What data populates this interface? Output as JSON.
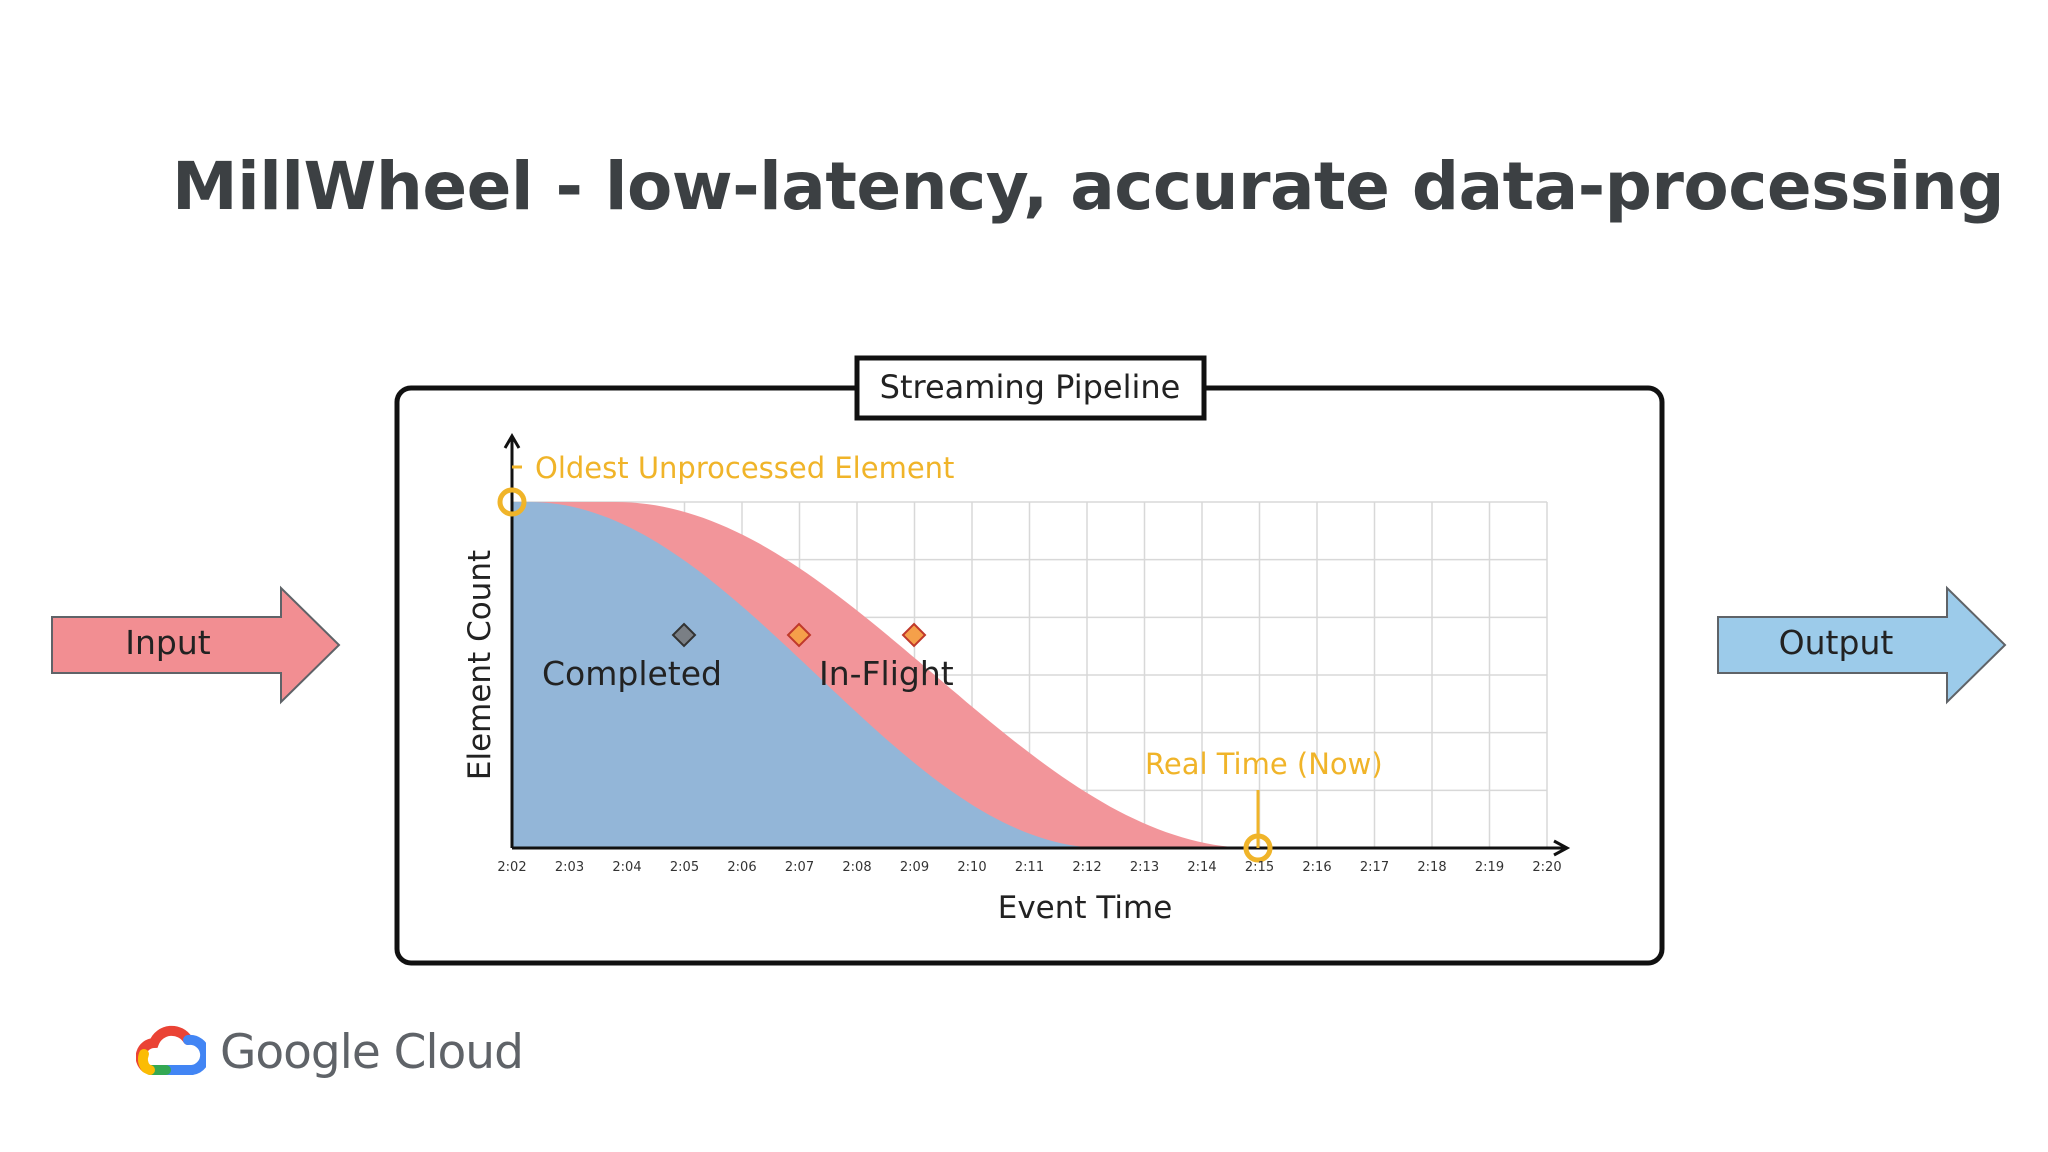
{
  "title": "MillWheel - low-latency, accurate data-processing",
  "input_label": "Input",
  "output_label": "Output",
  "pipeline": {
    "label": "Streaming Pipeline",
    "oldest_label": "Oldest Unprocessed Element",
    "completed_label": "Completed",
    "inflight_label": "In-Flight",
    "realtime_label": "Real Time (Now)",
    "y_axis_label": "Element Count",
    "x_axis_label": "Event Time",
    "x_ticks": [
      "2:02",
      "2:03",
      "2:04",
      "2:05",
      "2:06",
      "2:07",
      "2:08",
      "2:09",
      "2:10",
      "2:11",
      "2:12",
      "2:13",
      "2:14",
      "2:15",
      "2:16",
      "2:17",
      "2:18",
      "2:19",
      "2:20"
    ]
  },
  "colors": {
    "input_arrow": "#f28e92",
    "output_arrow": "#9ccbea",
    "completed_fill": "#93b6d8",
    "inflight_fill": "#f2959a",
    "annotation": "#f0b429",
    "completed_marker": "#7a7f85",
    "inflight_marker": "#f5a04a"
  },
  "footer": {
    "brand": "Google Cloud",
    "logo_icon": "google-cloud-logo-icon"
  }
}
